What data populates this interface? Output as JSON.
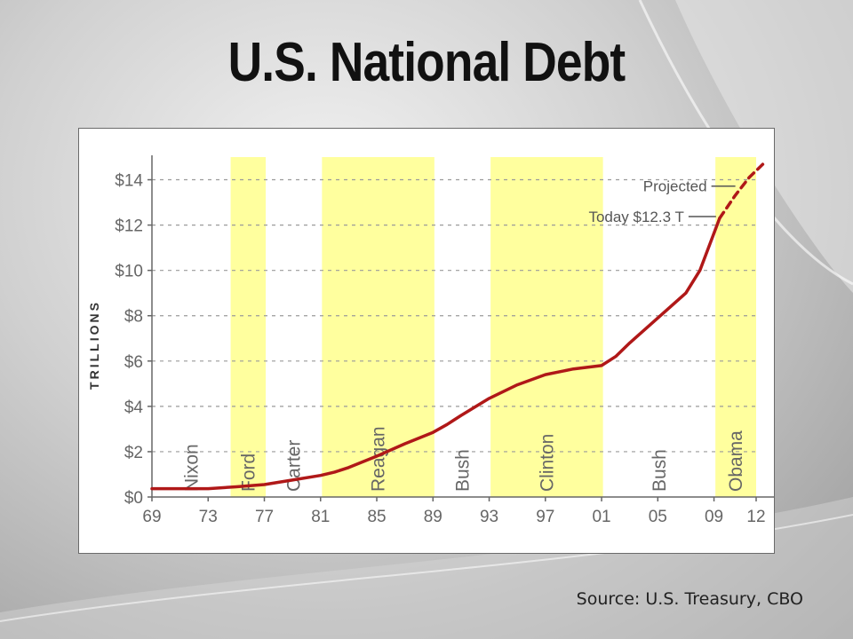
{
  "slide": {
    "title": "U.S. National Debt",
    "source": "Source: U.S. Treasury, CBO"
  },
  "colors": {
    "line": "#b01818",
    "band": "#ffff9e",
    "grid": "#9a9a9a",
    "axis": "#666666"
  },
  "chart_data": {
    "type": "line",
    "title": "",
    "ylabel": "TRILLIONS",
    "xlabel": "",
    "ylim": [
      0,
      15
    ],
    "xlim": [
      1969,
      2012
    ],
    "y_ticks": [
      0,
      2,
      4,
      6,
      8,
      10,
      12,
      14
    ],
    "y_tick_labels": [
      "$0",
      "$2",
      "$4",
      "$6",
      "$8",
      "$10",
      "$12",
      "$14"
    ],
    "x_ticks": [
      1969,
      1973,
      1977,
      1981,
      1985,
      1989,
      1993,
      1997,
      2001,
      2005,
      2009,
      2012
    ],
    "x_tick_labels": [
      "69",
      "73",
      "77",
      "81",
      "85",
      "89",
      "93",
      "97",
      "01",
      "05",
      "09",
      "12"
    ],
    "grid": true,
    "legend": "none",
    "presidencies": [
      {
        "name": "Nixon",
        "start": 1969,
        "end": 1974.6,
        "shaded": false
      },
      {
        "name": "Ford",
        "start": 1974.6,
        "end": 1977.1,
        "shaded": true
      },
      {
        "name": "Carter",
        "start": 1977.1,
        "end": 1981.1,
        "shaded": false
      },
      {
        "name": "Reagan",
        "start": 1981.1,
        "end": 1989.1,
        "shaded": true
      },
      {
        "name": "Bush",
        "start": 1989.1,
        "end": 1993.1,
        "shaded": false
      },
      {
        "name": "Clinton",
        "start": 1993.1,
        "end": 2001.1,
        "shaded": true
      },
      {
        "name": "Bush",
        "start": 2001.1,
        "end": 2009.1,
        "shaded": false
      },
      {
        "name": "Obama",
        "start": 2009.1,
        "end": 2013,
        "shaded": true
      }
    ],
    "series": [
      {
        "values": [
          {
            "x": 1969,
            "y": 0.37
          },
          {
            "x": 1971,
            "y": 0.37
          },
          {
            "x": 1973,
            "y": 0.37
          },
          {
            "x": 1975,
            "y": 0.45
          },
          {
            "x": 1977,
            "y": 0.55
          },
          {
            "x": 1979,
            "y": 0.75
          },
          {
            "x": 1981,
            "y": 0.95
          },
          {
            "x": 1982,
            "y": 1.1
          },
          {
            "x": 1983,
            "y": 1.3
          },
          {
            "x": 1985,
            "y": 1.8
          },
          {
            "x": 1987,
            "y": 2.35
          },
          {
            "x": 1989,
            "y": 2.85
          },
          {
            "x": 1990,
            "y": 3.2
          },
          {
            "x": 1991,
            "y": 3.6
          },
          {
            "x": 1993,
            "y": 4.35
          },
          {
            "x": 1995,
            "y": 4.95
          },
          {
            "x": 1997,
            "y": 5.4
          },
          {
            "x": 1999,
            "y": 5.65
          },
          {
            "x": 2001,
            "y": 5.8
          },
          {
            "x": 2002,
            "y": 6.2
          },
          {
            "x": 2003,
            "y": 6.8
          },
          {
            "x": 2005,
            "y": 7.9
          },
          {
            "x": 2007,
            "y": 9.0
          },
          {
            "x": 2008,
            "y": 10.0
          },
          {
            "x": 2009.4,
            "y": 12.3
          }
        ]
      },
      {
        "projected": true,
        "values": [
          {
            "x": 2009.4,
            "y": 12.3
          },
          {
            "x": 2010.5,
            "y": 13.3
          },
          {
            "x": 2011.5,
            "y": 14.1
          },
          {
            "x": 2012.5,
            "y": 14.7
          }
        ]
      }
    ],
    "annotations": [
      {
        "text": "Projected",
        "x": 2010.9,
        "y": 13.6
      },
      {
        "text": "Today $12.3 T",
        "x": 2009.4,
        "y": 12.3
      }
    ]
  }
}
